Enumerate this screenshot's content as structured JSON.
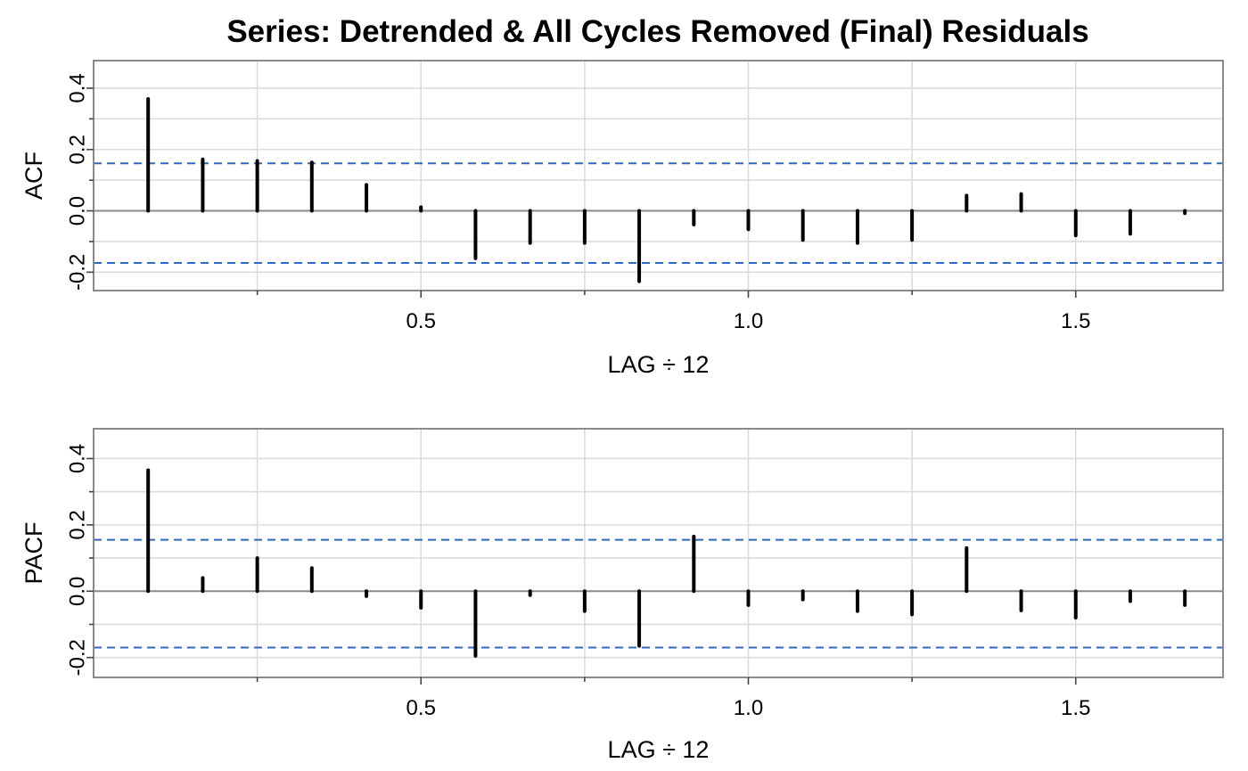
{
  "title": "Series: Detrended & All Cycles Removed (Final) Residuals",
  "chart_data": [
    {
      "type": "bar",
      "panel": "acf",
      "ylabel": "ACF",
      "xlabel": "LAG ÷ 12",
      "xlim": [
        0,
        1.725
      ],
      "ylim": [
        -0.26,
        0.49
      ],
      "xticks": [
        0.5,
        1.0,
        1.5
      ],
      "xtick_labels": [
        "0.5",
        "1.0",
        "1.5"
      ],
      "minor_xticks": [
        0.25,
        0.75,
        1.25
      ],
      "yticks": [
        -0.2,
        0.0,
        0.2,
        0.4
      ],
      "ytick_labels": [
        "-0.2",
        "0.0",
        "0.2",
        "0.4"
      ],
      "minor_yticks": [
        -0.1,
        0.1,
        0.3
      ],
      "ci": [
        -0.17,
        0.155
      ],
      "grid": true,
      "x": [
        0.0833,
        0.1667,
        0.25,
        0.3333,
        0.4167,
        0.5,
        0.5833,
        0.6667,
        0.75,
        0.8333,
        0.9167,
        1.0,
        1.0833,
        1.1667,
        1.25,
        1.3333,
        1.4167,
        1.5,
        1.5833,
        1.6667
      ],
      "values": [
        0.365,
        0.168,
        0.163,
        0.158,
        0.085,
        0.012,
        -0.155,
        -0.105,
        -0.105,
        -0.23,
        -0.045,
        -0.06,
        -0.095,
        -0.105,
        -0.095,
        0.05,
        0.055,
        -0.08,
        -0.075,
        -0.008
      ]
    },
    {
      "type": "bar",
      "panel": "pacf",
      "ylabel": "PACF",
      "xlabel": "LAG ÷ 12",
      "xlim": [
        0,
        1.725
      ],
      "ylim": [
        -0.26,
        0.49
      ],
      "xticks": [
        0.5,
        1.0,
        1.5
      ],
      "xtick_labels": [
        "0.5",
        "1.0",
        "1.5"
      ],
      "minor_xticks": [
        0.25,
        0.75,
        1.25
      ],
      "yticks": [
        -0.2,
        0.0,
        0.2,
        0.4
      ],
      "ytick_labels": [
        "-0.2",
        "0.0",
        "0.2",
        "0.4"
      ],
      "minor_yticks": [
        -0.1,
        0.1,
        0.3
      ],
      "ci": [
        -0.17,
        0.155
      ],
      "grid": true,
      "x": [
        0.0833,
        0.1667,
        0.25,
        0.3333,
        0.4167,
        0.5,
        0.5833,
        0.6667,
        0.75,
        0.8333,
        0.9167,
        1.0,
        1.0833,
        1.1667,
        1.25,
        1.3333,
        1.4167,
        1.5,
        1.5833,
        1.6667
      ],
      "values": [
        0.365,
        0.04,
        0.1,
        0.07,
        -0.015,
        -0.05,
        -0.195,
        -0.012,
        -0.06,
        -0.165,
        0.165,
        -0.042,
        -0.025,
        -0.06,
        -0.07,
        0.13,
        -0.058,
        -0.08,
        -0.03,
        -0.042
      ]
    }
  ],
  "colors": {
    "spike": "#000000",
    "ci_line": "#2b6bc0",
    "zero_line": "#8a8a8a",
    "frame": "#8a8a8a",
    "grid": "#dcdcdc"
  }
}
